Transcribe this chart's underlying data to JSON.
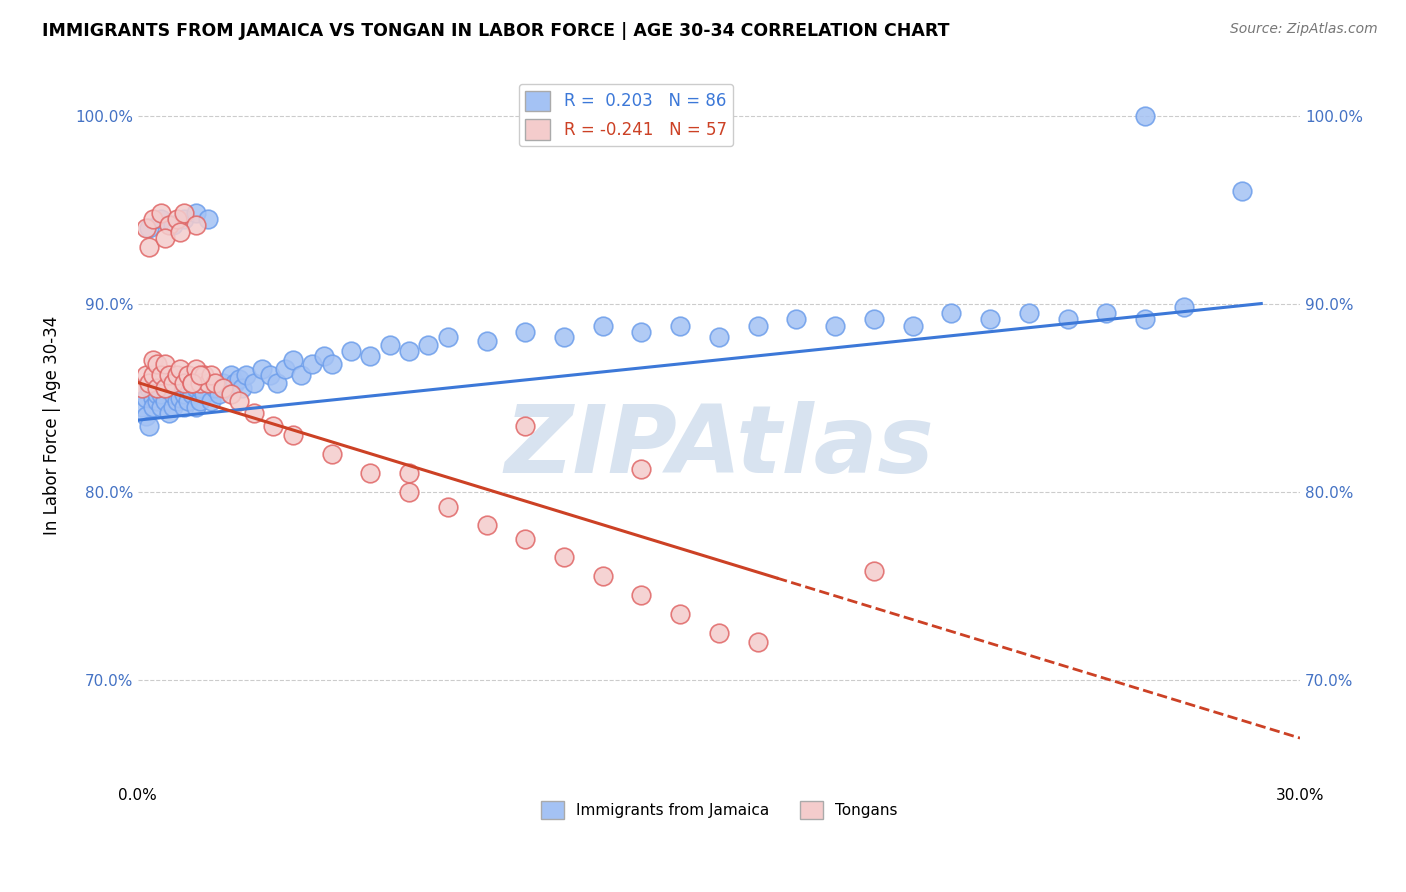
{
  "title": "IMMIGRANTS FROM JAMAICA VS TONGAN IN LABOR FORCE | AGE 30-34 CORRELATION CHART",
  "source": "Source: ZipAtlas.com",
  "ylabel": "In Labor Force | Age 30-34",
  "xlim": [
    0.0,
    0.3
  ],
  "ylim": [
    0.645,
    1.025
  ],
  "yticks": [
    0.7,
    0.8,
    0.9,
    1.0
  ],
  "jamaica_R": 0.203,
  "jamaica_N": 86,
  "tongan_R": -0.241,
  "tongan_N": 57,
  "jamaica_color": "#a4c2f4",
  "tongan_color": "#f4cccc",
  "jamaica_edge_color": "#6d9eeb",
  "tongan_edge_color": "#e06666",
  "jamaica_line_color": "#3c78d8",
  "tongan_line_color": "#cc4125",
  "label_color": "#4472c4",
  "background_color": "#ffffff",
  "grid_color": "#cccccc",
  "watermark": "ZIPAtlas",
  "watermark_color": "#c0c0c0",
  "legend_jamaica_label": "Immigrants from Jamaica",
  "legend_tongan_label": "Tongans",
  "jamaica_line_x0": 0.0,
  "jamaica_line_y0": 0.838,
  "jamaica_line_x1": 0.29,
  "jamaica_line_y1": 0.9,
  "tongan_line_x0": 0.0,
  "tongan_line_y0": 0.858,
  "tongan_line_x1": 0.165,
  "tongan_line_y1": 0.754,
  "jamaica_x": [
    0.001,
    0.002,
    0.002,
    0.003,
    0.003,
    0.004,
    0.004,
    0.005,
    0.005,
    0.006,
    0.006,
    0.007,
    0.007,
    0.008,
    0.008,
    0.009,
    0.009,
    0.01,
    0.01,
    0.011,
    0.011,
    0.012,
    0.012,
    0.013,
    0.013,
    0.014,
    0.014,
    0.015,
    0.015,
    0.016,
    0.016,
    0.017,
    0.018,
    0.019,
    0.02,
    0.021,
    0.022,
    0.023,
    0.024,
    0.025,
    0.026,
    0.027,
    0.028,
    0.03,
    0.032,
    0.034,
    0.036,
    0.038,
    0.04,
    0.042,
    0.045,
    0.048,
    0.05,
    0.055,
    0.06,
    0.065,
    0.07,
    0.075,
    0.08,
    0.09,
    0.1,
    0.11,
    0.12,
    0.13,
    0.14,
    0.15,
    0.16,
    0.17,
    0.18,
    0.19,
    0.2,
    0.21,
    0.22,
    0.23,
    0.24,
    0.25,
    0.26,
    0.27,
    0.003,
    0.006,
    0.009,
    0.012,
    0.015,
    0.018,
    0.26,
    0.285
  ],
  "jamaica_y": [
    0.845,
    0.85,
    0.84,
    0.855,
    0.835,
    0.85,
    0.845,
    0.848,
    0.852,
    0.845,
    0.852,
    0.848,
    0.855,
    0.842,
    0.858,
    0.845,
    0.852,
    0.848,
    0.855,
    0.85,
    0.858,
    0.845,
    0.852,
    0.855,
    0.848,
    0.852,
    0.858,
    0.845,
    0.855,
    0.848,
    0.855,
    0.852,
    0.858,
    0.848,
    0.855,
    0.852,
    0.858,
    0.855,
    0.862,
    0.858,
    0.86,
    0.855,
    0.862,
    0.858,
    0.865,
    0.862,
    0.858,
    0.865,
    0.87,
    0.862,
    0.868,
    0.872,
    0.868,
    0.875,
    0.872,
    0.878,
    0.875,
    0.878,
    0.882,
    0.88,
    0.885,
    0.882,
    0.888,
    0.885,
    0.888,
    0.882,
    0.888,
    0.892,
    0.888,
    0.892,
    0.888,
    0.895,
    0.892,
    0.895,
    0.892,
    0.895,
    0.892,
    0.898,
    0.94,
    0.945,
    0.942,
    0.945,
    0.948,
    0.945,
    1.0,
    0.96
  ],
  "tongan_x": [
    0.001,
    0.002,
    0.003,
    0.004,
    0.004,
    0.005,
    0.005,
    0.006,
    0.007,
    0.007,
    0.008,
    0.009,
    0.01,
    0.011,
    0.012,
    0.013,
    0.014,
    0.015,
    0.016,
    0.017,
    0.018,
    0.019,
    0.02,
    0.022,
    0.024,
    0.026,
    0.03,
    0.035,
    0.04,
    0.05,
    0.06,
    0.07,
    0.08,
    0.09,
    0.1,
    0.11,
    0.12,
    0.13,
    0.14,
    0.15,
    0.002,
    0.004,
    0.006,
    0.008,
    0.01,
    0.012,
    0.015,
    0.003,
    0.007,
    0.011,
    0.07,
    0.1,
    0.13,
    0.16,
    0.19,
    0.014,
    0.016
  ],
  "tongan_y": [
    0.855,
    0.862,
    0.858,
    0.862,
    0.87,
    0.855,
    0.868,
    0.862,
    0.855,
    0.868,
    0.862,
    0.858,
    0.862,
    0.865,
    0.858,
    0.862,
    0.858,
    0.865,
    0.858,
    0.862,
    0.858,
    0.862,
    0.858,
    0.855,
    0.852,
    0.848,
    0.842,
    0.835,
    0.83,
    0.82,
    0.81,
    0.8,
    0.792,
    0.782,
    0.775,
    0.765,
    0.755,
    0.745,
    0.735,
    0.725,
    0.94,
    0.945,
    0.948,
    0.942,
    0.945,
    0.948,
    0.942,
    0.93,
    0.935,
    0.938,
    0.81,
    0.835,
    0.812,
    0.72,
    0.758,
    0.858,
    0.862
  ]
}
